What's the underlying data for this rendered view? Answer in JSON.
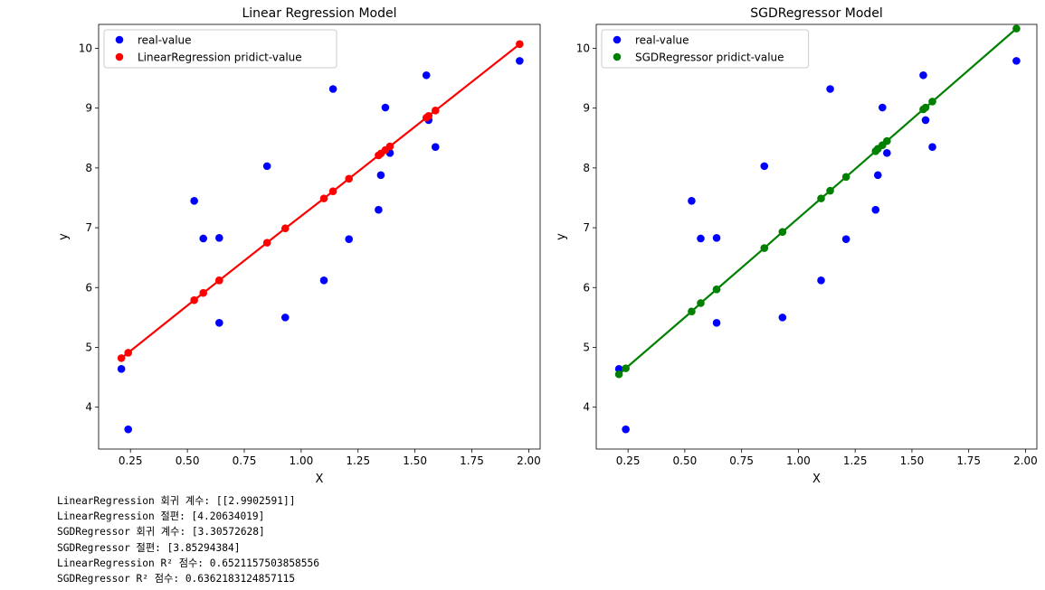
{
  "chart_data": [
    {
      "type": "scatter",
      "title": "Linear Regression Model",
      "xlabel": "X",
      "ylabel": "y",
      "xlim": [
        0.11,
        2.05
      ],
      "ylim": [
        3.3,
        10.4
      ],
      "xticks": [
        "0.25",
        "0.50",
        "0.75",
        "1.00",
        "1.25",
        "1.50",
        "1.75",
        "2.00"
      ],
      "yticks": [
        "4",
        "5",
        "6",
        "7",
        "8",
        "9",
        "10"
      ],
      "grid": false,
      "legend_position": "top-left",
      "series": [
        {
          "name": "real-value",
          "kind": "scatter",
          "color": "#0000ff",
          "x": [
            0.21,
            0.24,
            0.53,
            0.57,
            0.64,
            0.64,
            0.85,
            0.93,
            1.1,
            1.14,
            1.21,
            1.34,
            1.35,
            1.37,
            1.39,
            1.55,
            1.56,
            1.59,
            1.96
          ],
          "y": [
            4.64,
            3.63,
            7.45,
            6.82,
            6.83,
            5.41,
            8.03,
            5.5,
            6.12,
            9.32,
            6.81,
            7.3,
            7.88,
            9.01,
            8.25,
            9.55,
            8.8,
            8.35,
            9.79
          ]
        },
        {
          "name": "LinearRegression pridict-value",
          "kind": "line+scatter",
          "color": "#ff0000",
          "x": [
            0.21,
            0.24,
            0.53,
            0.57,
            0.64,
            0.64,
            0.85,
            0.93,
            1.1,
            1.14,
            1.21,
            1.34,
            1.35,
            1.37,
            1.39,
            1.55,
            1.56,
            1.59,
            1.96
          ],
          "y": [
            4.82,
            4.91,
            5.79,
            5.91,
            6.12,
            6.12,
            6.75,
            6.99,
            7.49,
            7.61,
            7.82,
            8.21,
            8.24,
            8.3,
            8.36,
            8.84,
            8.87,
            8.96,
            10.07
          ]
        }
      ]
    },
    {
      "type": "scatter",
      "title": "SGDRegressor Model",
      "xlabel": "X",
      "ylabel": "y",
      "xlim": [
        0.11,
        2.05
      ],
      "ylim": [
        3.3,
        10.4
      ],
      "xticks": [
        "0.25",
        "0.50",
        "0.75",
        "1.00",
        "1.25",
        "1.50",
        "1.75",
        "2.00"
      ],
      "yticks": [
        "4",
        "5",
        "6",
        "7",
        "8",
        "9",
        "10"
      ],
      "grid": false,
      "legend_position": "top-left",
      "series": [
        {
          "name": "real-value",
          "kind": "scatter",
          "color": "#0000ff",
          "x": [
            0.21,
            0.24,
            0.53,
            0.57,
            0.64,
            0.64,
            0.85,
            0.93,
            1.1,
            1.14,
            1.21,
            1.34,
            1.35,
            1.37,
            1.39,
            1.55,
            1.56,
            1.59,
            1.96
          ],
          "y": [
            4.64,
            3.63,
            7.45,
            6.82,
            6.83,
            5.41,
            8.03,
            5.5,
            6.12,
            9.32,
            6.81,
            7.3,
            7.88,
            9.01,
            8.25,
            9.55,
            8.8,
            8.35,
            9.79
          ]
        },
        {
          "name": "SGDRegressor pridict-value",
          "kind": "line+scatter",
          "color": "#008000",
          "x": [
            0.21,
            0.24,
            0.53,
            0.57,
            0.64,
            0.64,
            0.85,
            0.93,
            1.1,
            1.14,
            1.21,
            1.34,
            1.35,
            1.37,
            1.39,
            1.55,
            1.56,
            1.59,
            1.96
          ],
          "y": [
            4.55,
            4.65,
            5.6,
            5.74,
            5.97,
            5.97,
            6.66,
            6.93,
            7.49,
            7.62,
            7.85,
            8.28,
            8.32,
            8.38,
            8.45,
            8.98,
            9.01,
            9.11,
            10.33
          ]
        }
      ]
    }
  ],
  "output_lines": [
    "LinearRegression 회귀 계수: [[2.9902591]]",
    "LinearRegression 절편: [4.20634019]",
    "SGDRegressor 회귀 계수: [3.30572628]",
    "SGDRegressor 절편: [3.85294384]",
    "LinearRegression R² 점수: 0.6521157503858556",
    "SGDRegressor R² 점수: 0.6362183124857115"
  ]
}
